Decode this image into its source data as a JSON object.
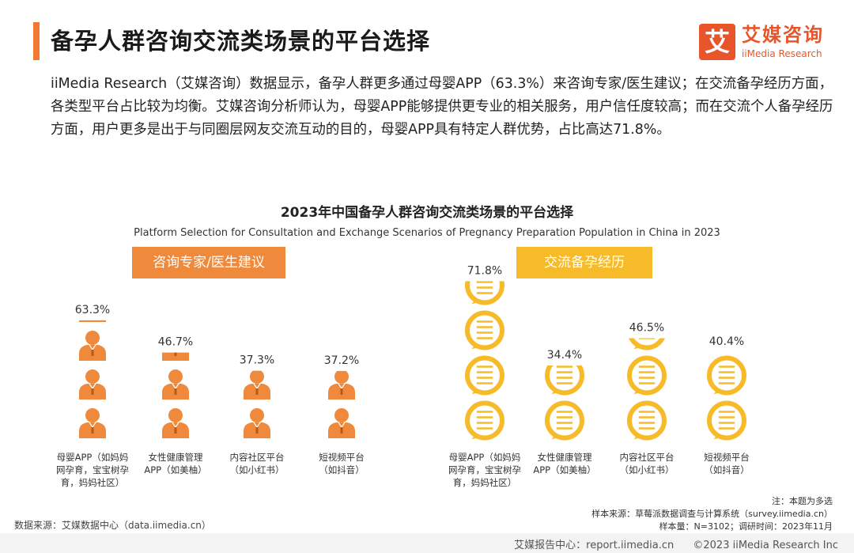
{
  "header": {
    "title": "备孕人群咨询交流类场景的平台选择",
    "logo_box": "艾",
    "logo_cn": "艾媒咨询",
    "logo_en": "iiMedia Research"
  },
  "intro": "iiMedia Research（艾媒咨询）数据显示，备孕人群更多通过母婴APP（63.3%）来咨询专家/医生建议；在交流备孕经历方面，各类型平台占比较为均衡。艾媒咨询分析师认为，母婴APP能够提供更专业的相关服务，用户信任度较高；而在交流个人备孕经历方面，用户更多是出于与同圈层网友交流互动的目的，母婴APP具有特定人群优势，占比高达71.8%。",
  "chart_data": [
    {
      "type": "bar",
      "title": "2023年中国备孕人群咨询交流类场景的平台选择",
      "subtitle": "Platform Selection for Consultation and Exchange Scenarios of Pregnancy Preparation Population in China in 2023",
      "panel": "咨询专家/医生建议",
      "color": "#ef8a3c",
      "icon": "person-icon",
      "unit": "%",
      "categories": [
        "母婴APP（如妈妈网孕育，宝宝树孕育，妈妈社区）",
        "女性健康管理APP（如美柚）",
        "内容社区平台（如小红书）",
        "短视频平台（如抖音）"
      ],
      "category_lines": [
        [
          "母婴APP（如妈妈",
          "网孕育，宝宝树孕",
          "育，妈妈社区）"
        ],
        [
          "女性健康管理",
          "APP（如美柚）"
        ],
        [
          "内容社区平台",
          "（如小红书）"
        ],
        [
          "短视频平台",
          "（如抖音）"
        ]
      ],
      "values": [
        63.3,
        46.7,
        37.3,
        37.2
      ],
      "labels": [
        "63.3%",
        "46.7%",
        "37.3%",
        "37.2%"
      ]
    },
    {
      "type": "bar",
      "panel": "交流备孕经历",
      "color": "#f7bb2a",
      "icon": "chat-bubble-icon",
      "unit": "%",
      "categories": [
        "母婴APP（如妈妈网孕育，宝宝树孕育，妈妈社区）",
        "女性健康管理APP（如美柚）",
        "内容社区平台（如小红书）",
        "短视频平台（如抖音）"
      ],
      "category_lines": [
        [
          "母婴APP（如妈妈",
          "网孕育，宝宝树孕",
          "育，妈妈社区）"
        ],
        [
          "女性健康管理",
          "APP（如美柚）"
        ],
        [
          "内容社区平台",
          "（如小红书）"
        ],
        [
          "短视频平台",
          "（如抖音）"
        ]
      ],
      "values": [
        71.8,
        34.4,
        46.5,
        40.4
      ],
      "labels": [
        "71.8%",
        "34.4%",
        "46.5%",
        "40.4%"
      ]
    }
  ],
  "footer": {
    "source_left": "数据来源：艾媒数据中心（data.iimedia.cn）",
    "note": "注：本题为多选",
    "sample_source": "样本来源：草莓派数据调查与计算系统（survey.iimedia.cn）",
    "sample_size": "样本量：N=3102；调研时间：2023年11月"
  },
  "bottom_bar": {
    "report": "艾媒报告中心：report.iimedia.cn",
    "copyright": "©2023  iiMedia Research  Inc"
  }
}
